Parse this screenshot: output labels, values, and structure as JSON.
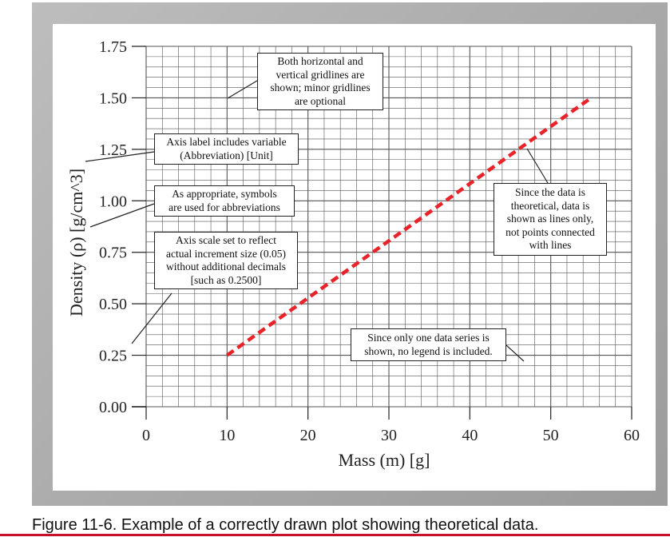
{
  "chart_data": {
    "type": "line",
    "xlabel": "Mass (m) [g]",
    "ylabel": "Density (ρ) [g/cm^3]",
    "xlim": [
      0,
      60
    ],
    "ylim": [
      0,
      1.75
    ],
    "x_ticks": [
      "0",
      "10",
      "20",
      "30",
      "40",
      "50",
      "60"
    ],
    "y_ticks": [
      "0.00",
      "0.25",
      "0.50",
      "0.75",
      "1.00",
      "1.25",
      "1.50",
      "1.75"
    ],
    "grid": true,
    "legend": "none",
    "series": [
      {
        "x": [
          10,
          55
        ],
        "y": [
          0.25,
          1.5
        ],
        "style": "dashed",
        "color": "#e8232a"
      }
    ],
    "annotations": [
      "Both horizontal and\nvertical gridlines are\nshown; minor gridlines\nare optional",
      "Axis label includes variable\n(Abbreviation) [Unit]",
      "As appropriate, symbols\nare used for abbreviations",
      "Axis scale set to reflect\nactual increment size (0.05)\nwithout additional decimals\n[such as 0.2500]",
      "Since the data is\ntheoretical, data is\nshown as lines only,\nnot points connected\nwith lines",
      "Since only one data series is\nshown, no legend is included."
    ]
  },
  "caption": "Figure 11-6. Example of a correctly drawn plot showing theoretical data.",
  "colors": {
    "series": "#e8232a",
    "frame": "#a9a9a9",
    "accent_rule": "#c8102e"
  }
}
